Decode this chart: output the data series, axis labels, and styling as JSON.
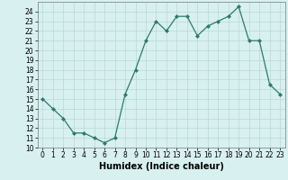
{
  "x": [
    0,
    1,
    2,
    3,
    4,
    5,
    6,
    7,
    8,
    9,
    10,
    11,
    12,
    13,
    14,
    15,
    16,
    17,
    18,
    19,
    20,
    21,
    22,
    23
  ],
  "y": [
    15,
    14,
    13,
    11.5,
    11.5,
    11,
    10.5,
    11,
    15.5,
    18,
    21,
    23,
    22,
    23.5,
    23.5,
    21.5,
    22.5,
    23,
    23.5,
    24.5,
    21,
    21,
    16.5,
    15.5
  ],
  "title": "",
  "xlabel": "Humidex (Indice chaleur)",
  "ylabel": "",
  "ylim": [
    10,
    25
  ],
  "xlim": [
    -0.5,
    23.5
  ],
  "yticks": [
    10,
    11,
    12,
    13,
    14,
    15,
    16,
    17,
    18,
    19,
    20,
    21,
    22,
    23,
    24
  ],
  "xticks": [
    0,
    1,
    2,
    3,
    4,
    5,
    6,
    7,
    8,
    9,
    10,
    11,
    12,
    13,
    14,
    15,
    16,
    17,
    18,
    19,
    20,
    21,
    22,
    23
  ],
  "line_color": "#2d7a6e",
  "marker_color": "#2d7a6e",
  "bg_color": "#d8f0f0",
  "grid_color": "#b8d8d8",
  "tick_fontsize": 5.5,
  "xlabel_fontsize": 7
}
